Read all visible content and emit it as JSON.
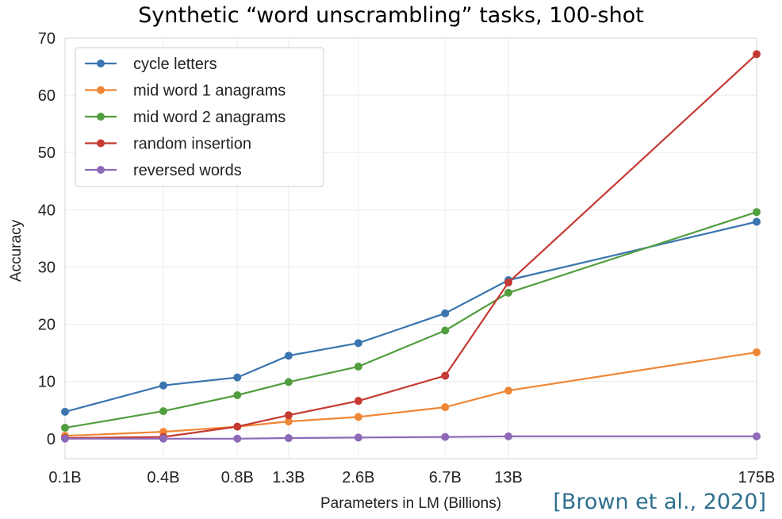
{
  "chart_data": {
    "type": "line",
    "title": "Synthetic “word unscrambling” tasks, 100-shot",
    "xlabel": "Parameters in LM (Billions)",
    "ylabel": "Accuracy",
    "x_scale": "log",
    "ylim": [
      -3.5,
      70
    ],
    "grid": true,
    "legend_position": "top-left",
    "categories": [
      "0.1B",
      "0.4B",
      "0.8B",
      "1.3B",
      "2.6B",
      "6.7B",
      "13B",
      "175B"
    ],
    "x_values_billions": [
      0.125,
      0.35,
      0.76,
      1.3,
      2.7,
      6.7,
      13,
      175
    ],
    "y_ticks": [
      0,
      10,
      20,
      30,
      40,
      50,
      60,
      70
    ],
    "series": [
      {
        "name": "cycle letters",
        "color": "#3b75af",
        "values": [
          4.7,
          9.3,
          10.7,
          14.5,
          16.7,
          21.9,
          27.7,
          37.9
        ]
      },
      {
        "name": "mid word 1 anagrams",
        "color": "#ef8636",
        "values": [
          0.5,
          1.2,
          2.1,
          3.0,
          3.8,
          5.5,
          8.4,
          15.1
        ]
      },
      {
        "name": "mid word 2 anagrams",
        "color": "#519e3e",
        "values": [
          1.9,
          4.8,
          7.6,
          9.9,
          12.6,
          18.9,
          25.5,
          39.6
        ]
      },
      {
        "name": "random insertion",
        "color": "#c53a32",
        "values": [
          0.1,
          0.3,
          2.1,
          4.1,
          6.6,
          11.0,
          27.3,
          67.2
        ]
      },
      {
        "name": "reversed words",
        "color": "#8d69b8",
        "values": [
          0.0,
          0.0,
          0.0,
          0.1,
          0.2,
          0.3,
          0.4,
          0.4
        ]
      }
    ]
  },
  "annotation": {
    "citation": "[Brown et al., 2020]",
    "citation_color": "#2e6f8e"
  }
}
